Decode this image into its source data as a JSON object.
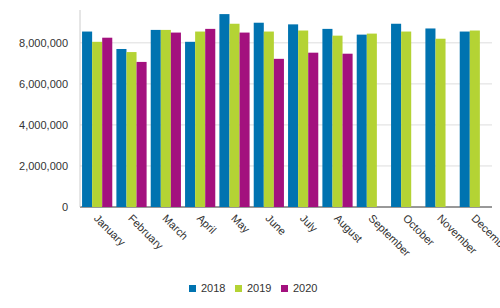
{
  "chart_data": {
    "type": "bar",
    "categories": [
      "January",
      "February",
      "March",
      "April",
      "May",
      "June",
      "July",
      "August",
      "September",
      "October",
      "November",
      "December"
    ],
    "series": [
      {
        "name": "2018",
        "color": "#0073b0",
        "values": [
          8550000,
          7700000,
          8630000,
          8050000,
          9400000,
          8980000,
          8900000,
          8680000,
          8400000,
          8930000,
          8700000,
          8550000
        ]
      },
      {
        "name": "2019",
        "color": "#b4d334",
        "values": [
          8050000,
          7550000,
          8630000,
          8550000,
          8930000,
          8550000,
          8600000,
          8350000,
          8450000,
          8550000,
          8200000,
          8600000
        ]
      },
      {
        "name": "2020",
        "color": "#a3117e",
        "values": [
          8250000,
          7070000,
          8500000,
          8680000,
          8500000,
          7220000,
          7520000,
          7470000,
          null,
          null,
          null,
          null
        ]
      }
    ],
    "ylim": [
      0,
      9600000
    ],
    "yticks": [
      0,
      {
        "value": 2000000,
        "label": "2,000,000"
      },
      {
        "value": 4000000,
        "label": "4,000,000"
      },
      {
        "value": 6000000,
        "label": "6,000,000"
      },
      {
        "value": 8000000,
        "label": "8,000,000"
      }
    ],
    "grid": true,
    "legend": "bottom"
  }
}
